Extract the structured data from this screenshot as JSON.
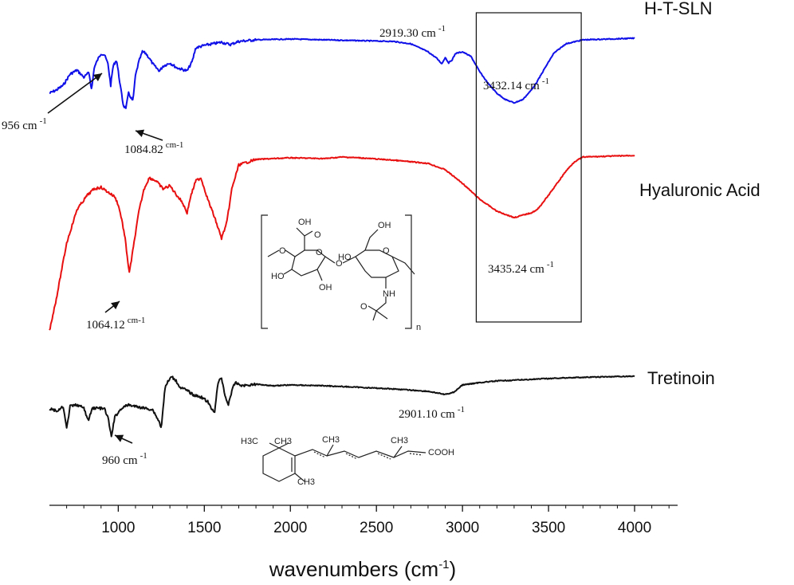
{
  "chart_data": {
    "type": "line",
    "xlabel": "wavenumbers (cm-1)",
    "xlabel_main": "wavenumbers (cm",
    "xlabel_sup": "-1",
    "xlabel_end": ")",
    "xlim": [
      600,
      4250
    ],
    "x_ticks": [
      "1000",
      "1500",
      "2000",
      "2500",
      "3000",
      "3500",
      "4000"
    ],
    "x_tick_values": [
      1000,
      1500,
      2000,
      2500,
      3000,
      3500,
      4000
    ],
    "series": [
      {
        "name": "H-T-SLN",
        "color": "#1010e8",
        "baseline": 45,
        "points": [
          [
            600,
            72
          ],
          [
            640,
            68
          ],
          [
            680,
            62
          ],
          [
            720,
            48
          ],
          [
            760,
            43
          ],
          [
            800,
            52
          ],
          [
            830,
            46
          ],
          [
            845,
            68
          ],
          [
            860,
            40
          ],
          [
            880,
            30
          ],
          [
            900,
            22
          ],
          [
            920,
            24
          ],
          [
            940,
            35
          ],
          [
            956,
            62
          ],
          [
            970,
            38
          ],
          [
            990,
            30
          ],
          [
            1010,
            60
          ],
          [
            1030,
            88
          ],
          [
            1045,
            90
          ],
          [
            1060,
            72
          ],
          [
            1084.82,
            82
          ],
          [
            1100,
            50
          ],
          [
            1120,
            32
          ],
          [
            1140,
            20
          ],
          [
            1160,
            22
          ],
          [
            1180,
            28
          ],
          [
            1200,
            35
          ],
          [
            1220,
            40
          ],
          [
            1240,
            44
          ],
          [
            1260,
            38
          ],
          [
            1300,
            34
          ],
          [
            1340,
            40
          ],
          [
            1400,
            44
          ],
          [
            1430,
            32
          ],
          [
            1450,
            15
          ],
          [
            1500,
            12
          ],
          [
            1550,
            10
          ],
          [
            1600,
            8
          ],
          [
            1650,
            11
          ],
          [
            1700,
            7
          ],
          [
            1800,
            5
          ],
          [
            2000,
            4
          ],
          [
            2200,
            5
          ],
          [
            2400,
            6
          ],
          [
            2600,
            7
          ],
          [
            2700,
            10
          ],
          [
            2800,
            20
          ],
          [
            2850,
            28
          ],
          [
            2880,
            35
          ],
          [
            2900,
            27
          ],
          [
            2919.3,
            34
          ],
          [
            2940,
            30
          ],
          [
            2960,
            22
          ],
          [
            3000,
            20
          ],
          [
            3050,
            26
          ],
          [
            3100,
            45
          ],
          [
            3150,
            60
          ],
          [
            3200,
            72
          ],
          [
            3250,
            80
          ],
          [
            3300,
            84
          ],
          [
            3350,
            80
          ],
          [
            3400,
            68
          ],
          [
            3432.14,
            58
          ],
          [
            3480,
            40
          ],
          [
            3530,
            22
          ],
          [
            3600,
            10
          ],
          [
            3700,
            5
          ],
          [
            4000,
            3
          ]
        ]
      },
      {
        "name": "Hyaluronic Acid",
        "color": "#e81010",
        "baseline": 195,
        "points": [
          [
            600,
            220
          ],
          [
            640,
            180
          ],
          [
            700,
            110
          ],
          [
            760,
            68
          ],
          [
            820,
            50
          ],
          [
            860,
            42
          ],
          [
            900,
            40
          ],
          [
            940,
            46
          ],
          [
            980,
            52
          ],
          [
            1000,
            62
          ],
          [
            1020,
            80
          ],
          [
            1040,
            105
          ],
          [
            1064.12,
            148
          ],
          [
            1090,
            112
          ],
          [
            1120,
            70
          ],
          [
            1150,
            42
          ],
          [
            1180,
            28
          ],
          [
            1220,
            32
          ],
          [
            1260,
            42
          ],
          [
            1300,
            38
          ],
          [
            1340,
            50
          ],
          [
            1370,
            58
          ],
          [
            1400,
            72
          ],
          [
            1420,
            52
          ],
          [
            1450,
            32
          ],
          [
            1480,
            28
          ],
          [
            1520,
            55
          ],
          [
            1560,
            78
          ],
          [
            1600,
            104
          ],
          [
            1630,
            85
          ],
          [
            1660,
            42
          ],
          [
            1700,
            12
          ],
          [
            1800,
            5
          ],
          [
            2000,
            3
          ],
          [
            2200,
            4
          ],
          [
            2300,
            2
          ],
          [
            2400,
            3
          ],
          [
            2600,
            6
          ],
          [
            2800,
            10
          ],
          [
            2900,
            18
          ],
          [
            3000,
            35
          ],
          [
            3100,
            55
          ],
          [
            3200,
            70
          ],
          [
            3300,
            78
          ],
          [
            3400,
            72
          ],
          [
            3435.24,
            68
          ],
          [
            3500,
            50
          ],
          [
            3550,
            35
          ],
          [
            3600,
            20
          ],
          [
            3650,
            8
          ],
          [
            3700,
            2
          ],
          [
            4000,
            0
          ]
        ]
      },
      {
        "name": "Tretinoin",
        "color": "#111111",
        "baseline": 468,
        "points": [
          [
            600,
            45
          ],
          [
            650,
            48
          ],
          [
            680,
            42
          ],
          [
            700,
            70
          ],
          [
            720,
            42
          ],
          [
            760,
            40
          ],
          [
            800,
            44
          ],
          [
            825,
            60
          ],
          [
            850,
            44
          ],
          [
            880,
            44
          ],
          [
            920,
            45
          ],
          [
            940,
            56
          ],
          [
            960,
            80
          ],
          [
            980,
            55
          ],
          [
            1020,
            44
          ],
          [
            1060,
            40
          ],
          [
            1100,
            42
          ],
          [
            1150,
            44
          ],
          [
            1200,
            46
          ],
          [
            1240,
            62
          ],
          [
            1250,
            70
          ],
          [
            1270,
            20
          ],
          [
            1290,
            10
          ],
          [
            1310,
            5
          ],
          [
            1330,
            8
          ],
          [
            1360,
            18
          ],
          [
            1400,
            22
          ],
          [
            1440,
            28
          ],
          [
            1480,
            30
          ],
          [
            1520,
            36
          ],
          [
            1540,
            45
          ],
          [
            1560,
            48
          ],
          [
            1580,
            12
          ],
          [
            1600,
            6
          ],
          [
            1620,
            28
          ],
          [
            1640,
            40
          ],
          [
            1660,
            22
          ],
          [
            1680,
            12
          ],
          [
            1720,
            16
          ],
          [
            1800,
            14
          ],
          [
            1900,
            16
          ],
          [
            2000,
            15
          ],
          [
            2200,
            16
          ],
          [
            2400,
            18
          ],
          [
            2600,
            20
          ],
          [
            2800,
            23
          ],
          [
            2901.1,
            27
          ],
          [
            2950,
            24
          ],
          [
            3000,
            15
          ],
          [
            3100,
            12
          ],
          [
            3200,
            10
          ],
          [
            3400,
            8
          ],
          [
            3600,
            6
          ],
          [
            4000,
            4
          ]
        ]
      }
    ],
    "annotations": [
      {
        "text": "956 cm",
        "sup": "-1",
        "series": 0,
        "x": 956
      },
      {
        "text": "1084.82",
        "sup": "cm-1",
        "series": 0,
        "x": 1084.82
      },
      {
        "text": "2919.30 cm",
        "sup": "-1",
        "series": 0,
        "x": 2919.3
      },
      {
        "text": "3432.14 cm",
        "sup": "-1",
        "series": 0,
        "x": 3432.14
      },
      {
        "text": "1064.12",
        "sup": "cm-1",
        "series": 1,
        "x": 1064.12
      },
      {
        "text": "3435.24 cm",
        "sup": "-1",
        "series": 1,
        "x": 3435.24
      },
      {
        "text": "960 cm",
        "sup": "-1",
        "series": 2,
        "x": 960
      },
      {
        "text": "2901.10 cm",
        "sup": "-1",
        "series": 2,
        "x": 2901.1
      }
    ],
    "highlight_box_x": [
      3080,
      3690
    ],
    "structures": {
      "hyaluronic_acid": [
        "OH",
        "O",
        "O",
        "HO",
        "O",
        "OH",
        "O",
        "HO",
        "O",
        "OH",
        "NH",
        "O",
        "n"
      ],
      "tretinoin": [
        "H3C",
        "CH3",
        "CH3",
        "CH3",
        "COOH",
        "CH3"
      ]
    }
  }
}
